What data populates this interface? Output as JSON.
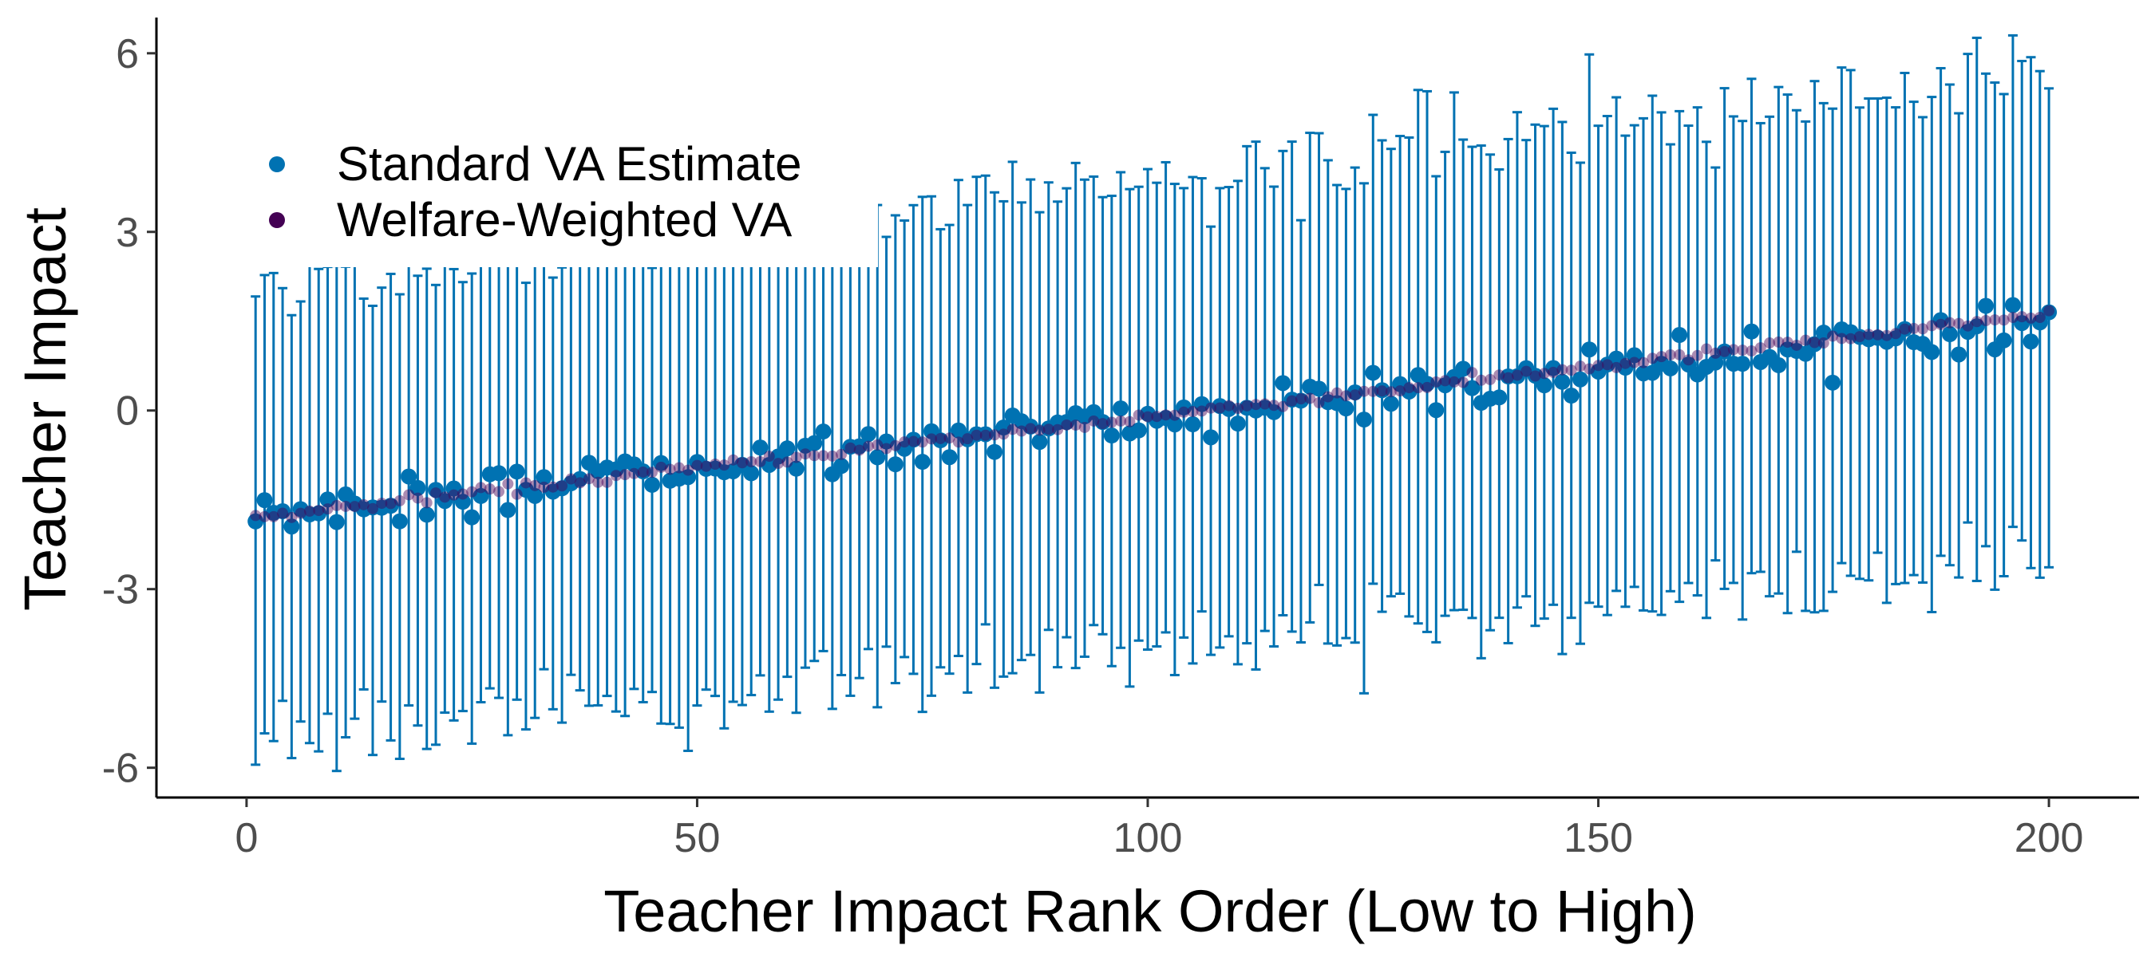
{
  "chart_data": {
    "type": "scatter",
    "title": "",
    "xlabel": "Teacher Impact Rank Order (Low to High)",
    "ylabel": "Teacher Impact",
    "xlim": [
      -10,
      210
    ],
    "ylim": [
      -6.5,
      6.6
    ],
    "x_ticks": [
      0,
      50,
      100,
      150,
      200
    ],
    "y_ticks": [
      -6,
      -3,
      0,
      3,
      6
    ],
    "x_tick_labels": [
      "0",
      "50",
      "100",
      "150",
      "200"
    ],
    "y_tick_labels": [
      "-6",
      "-3",
      "0",
      "3",
      "6"
    ],
    "grid": false,
    "legend_position": "top-left",
    "n_points": 200,
    "series": [
      {
        "name": "Standard VA Estimate",
        "color": "#0072B2",
        "marker": "point-with-errorbar",
        "trend": {
          "x_start": 1,
          "y_start": -1.8,
          "x_end": 200,
          "y_end": 1.55
        },
        "noise_sd": 0.2,
        "ci_half_width": {
          "x_start": 1,
          "lo_start": 3.8,
          "hi_start": 3.9,
          "x_end": 200,
          "lo_end": 4.0,
          "hi_end": 4.2
        }
      },
      {
        "name": "Welfare-Weighted VA",
        "color": "#440154",
        "marker": "point",
        "trend": {
          "x_start": 1,
          "y_start": -1.8,
          "x_end": 200,
          "y_end": 1.6
        }
      }
    ],
    "legend_mask_color": "#ffffff"
  }
}
